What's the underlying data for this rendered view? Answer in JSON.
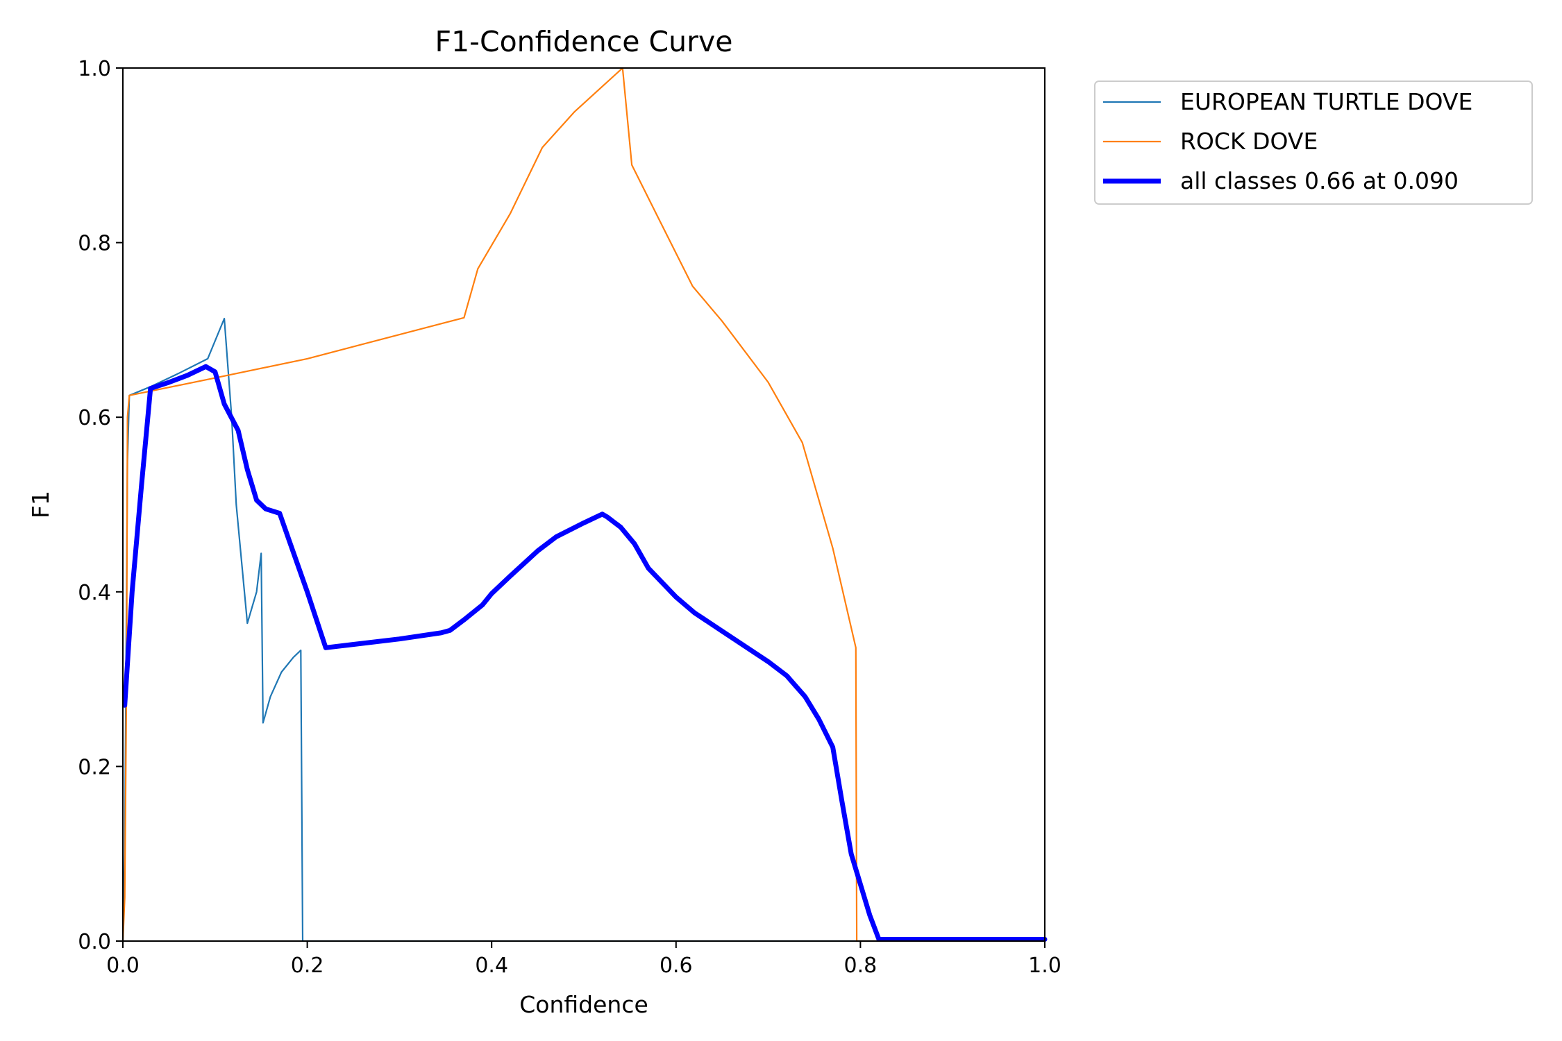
{
  "chart_data": {
    "type": "line",
    "title": "F1-Confidence Curve",
    "xlabel": "Confidence",
    "ylabel": "F1",
    "xlim": [
      0,
      1
    ],
    "ylim": [
      0,
      1
    ],
    "xticks": [
      "0.0",
      "0.2",
      "0.4",
      "0.6",
      "0.8",
      "1.0"
    ],
    "yticks": [
      "0.0",
      "0.2",
      "0.4",
      "0.6",
      "0.8",
      "1.0"
    ],
    "grid": false,
    "legend_position": "outside-top-right",
    "series": [
      {
        "name": "EUROPEAN TURTLE DOVE",
        "color": "#1f77b4",
        "style": "thin",
        "points": [
          [
            0.0,
            0.0
          ],
          [
            0.002,
            0.1
          ],
          [
            0.005,
            0.55
          ],
          [
            0.007,
            0.625
          ],
          [
            0.03,
            0.635
          ],
          [
            0.06,
            0.65
          ],
          [
            0.092,
            0.667
          ],
          [
            0.11,
            0.713
          ],
          [
            0.118,
            0.6
          ],
          [
            0.123,
            0.5
          ],
          [
            0.135,
            0.364
          ],
          [
            0.145,
            0.4
          ],
          [
            0.15,
            0.444
          ],
          [
            0.152,
            0.25
          ],
          [
            0.16,
            0.28
          ],
          [
            0.172,
            0.308
          ],
          [
            0.185,
            0.325
          ],
          [
            0.193,
            0.333
          ],
          [
            0.195,
            0.0
          ],
          [
            1.0,
            0.0
          ]
        ]
      },
      {
        "name": "ROCK DOVE",
        "color": "#ff7f0e",
        "style": "thin",
        "points": [
          [
            0.0,
            0.0
          ],
          [
            0.002,
            0.05
          ],
          [
            0.004,
            0.3
          ],
          [
            0.005,
            0.6
          ],
          [
            0.007,
            0.625
          ],
          [
            0.1,
            0.645
          ],
          [
            0.2,
            0.667
          ],
          [
            0.37,
            0.714
          ],
          [
            0.385,
            0.77
          ],
          [
            0.42,
            0.833
          ],
          [
            0.455,
            0.909
          ],
          [
            0.49,
            0.95
          ],
          [
            0.542,
            1.0
          ],
          [
            0.552,
            0.889
          ],
          [
            0.58,
            0.83
          ],
          [
            0.618,
            0.75
          ],
          [
            0.65,
            0.71
          ],
          [
            0.7,
            0.64
          ],
          [
            0.737,
            0.571
          ],
          [
            0.77,
            0.45
          ],
          [
            0.795,
            0.336
          ],
          [
            0.796,
            0.0
          ],
          [
            1.0,
            0.0
          ]
        ]
      },
      {
        "name": "all classes 0.66 at 0.090",
        "color": "#0000ff",
        "style": "bold",
        "points": [
          [
            0.002,
            0.27
          ],
          [
            0.01,
            0.4
          ],
          [
            0.02,
            0.52
          ],
          [
            0.03,
            0.633
          ],
          [
            0.05,
            0.64
          ],
          [
            0.07,
            0.648
          ],
          [
            0.09,
            0.658
          ],
          [
            0.1,
            0.652
          ],
          [
            0.11,
            0.615
          ],
          [
            0.125,
            0.585
          ],
          [
            0.135,
            0.54
          ],
          [
            0.145,
            0.505
          ],
          [
            0.155,
            0.495
          ],
          [
            0.17,
            0.49
          ],
          [
            0.18,
            0.46
          ],
          [
            0.2,
            0.4
          ],
          [
            0.22,
            0.336
          ],
          [
            0.3,
            0.346
          ],
          [
            0.345,
            0.353
          ],
          [
            0.355,
            0.356
          ],
          [
            0.37,
            0.368
          ],
          [
            0.39,
            0.385
          ],
          [
            0.4,
            0.398
          ],
          [
            0.42,
            0.418
          ],
          [
            0.45,
            0.447
          ],
          [
            0.47,
            0.463
          ],
          [
            0.5,
            0.479
          ],
          [
            0.52,
            0.489
          ],
          [
            0.525,
            0.486
          ],
          [
            0.54,
            0.474
          ],
          [
            0.555,
            0.455
          ],
          [
            0.57,
            0.427
          ],
          [
            0.6,
            0.394
          ],
          [
            0.62,
            0.376
          ],
          [
            0.65,
            0.355
          ],
          [
            0.7,
            0.32
          ],
          [
            0.72,
            0.304
          ],
          [
            0.74,
            0.28
          ],
          [
            0.755,
            0.254
          ],
          [
            0.77,
            0.222
          ],
          [
            0.78,
            0.16
          ],
          [
            0.79,
            0.1
          ],
          [
            0.81,
            0.03
          ],
          [
            0.82,
            0.002
          ],
          [
            1.0,
            0.002
          ]
        ]
      }
    ]
  }
}
